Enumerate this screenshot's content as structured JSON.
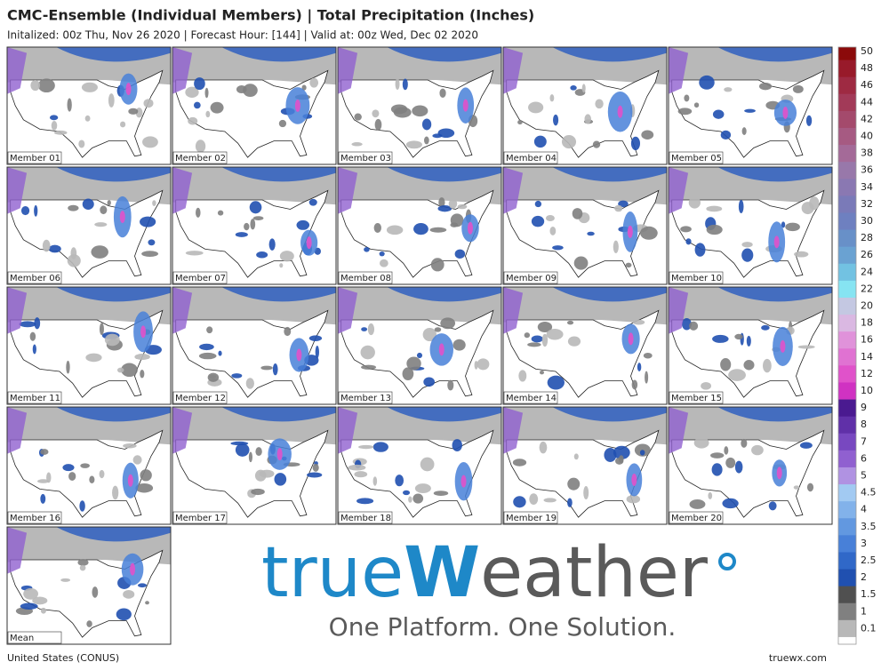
{
  "header": {
    "title": "CMC-Ensemble (Individual Members) | Total Precipitation (Inches)",
    "subtitle": "Initalized: 00z Thu, Nov 26 2020 | Forecast Hour: [144] | Valid at: 00z Wed, Dec 02 2020"
  },
  "panels": [
    {
      "label": "Member 01"
    },
    {
      "label": "Member 02"
    },
    {
      "label": "Member 03"
    },
    {
      "label": "Member 04"
    },
    {
      "label": "Member 05"
    },
    {
      "label": "Member 06"
    },
    {
      "label": "Member 07"
    },
    {
      "label": "Member 08"
    },
    {
      "label": "Member 09"
    },
    {
      "label": "Member 10"
    },
    {
      "label": "Member 11"
    },
    {
      "label": "Member 12"
    },
    {
      "label": "Member 13"
    },
    {
      "label": "Member 14"
    },
    {
      "label": "Member 15"
    },
    {
      "label": "Member 16"
    },
    {
      "label": "Member 17"
    },
    {
      "label": "Member 18"
    },
    {
      "label": "Member 19"
    },
    {
      "label": "Member 20"
    },
    {
      "label": "Mean"
    }
  ],
  "colorbar": {
    "levels": [
      {
        "value": 50,
        "color": "#8b0a0a"
      },
      {
        "value": 48,
        "color": "#981a2a"
      },
      {
        "value": 46,
        "color": "#9e2a42"
      },
      {
        "value": 44,
        "color": "#a23a58"
      },
      {
        "value": 42,
        "color": "#a44a6c"
      },
      {
        "value": 40,
        "color": "#a65a82"
      },
      {
        "value": 38,
        "color": "#a46a98"
      },
      {
        "value": 36,
        "color": "#9878aa"
      },
      {
        "value": 34,
        "color": "#8a78b2"
      },
      {
        "value": 32,
        "color": "#7a7ab8"
      },
      {
        "value": 30,
        "color": "#6e80c0"
      },
      {
        "value": 28,
        "color": "#6890c8"
      },
      {
        "value": 26,
        "color": "#6aa2d2"
      },
      {
        "value": 24,
        "color": "#72c2e2"
      },
      {
        "value": 22,
        "color": "#86e4f2"
      },
      {
        "value": 20,
        "color": "#c4c8e2"
      },
      {
        "value": 18,
        "color": "#dab8e2"
      },
      {
        "value": 16,
        "color": "#e092da"
      },
      {
        "value": 14,
        "color": "#e072d2"
      },
      {
        "value": 12,
        "color": "#e052ca"
      },
      {
        "value": 10,
        "color": "#d032c2"
      },
      {
        "value": 9,
        "color": "#4a1a90"
      },
      {
        "value": 8,
        "color": "#6030a8"
      },
      {
        "value": 7,
        "color": "#7848c0"
      },
      {
        "value": 6,
        "color": "#9060d0"
      },
      {
        "value": 5,
        "color": "#b092e2"
      },
      {
        "value": 4.5,
        "color": "#a2caf2"
      },
      {
        "value": 4,
        "color": "#82b2ea"
      },
      {
        "value": 3.5,
        "color": "#6298e0"
      },
      {
        "value": 3,
        "color": "#4880d8"
      },
      {
        "value": 2.5,
        "color": "#3068c8"
      },
      {
        "value": 2,
        "color": "#2050b0"
      },
      {
        "value": 1.5,
        "color": "#505050"
      },
      {
        "value": 1,
        "color": "#808080"
      },
      {
        "value": 0.1,
        "color": "#b8b8b8"
      }
    ],
    "base_color": "#ffffff"
  },
  "logo": {
    "brand_prefix": "true",
    "brand_w": "W",
    "brand_suffix": "eather",
    "tagline": "One Platform. One Solution."
  },
  "footer": {
    "region": "United States (CONUS)",
    "site": "truewx.com"
  }
}
